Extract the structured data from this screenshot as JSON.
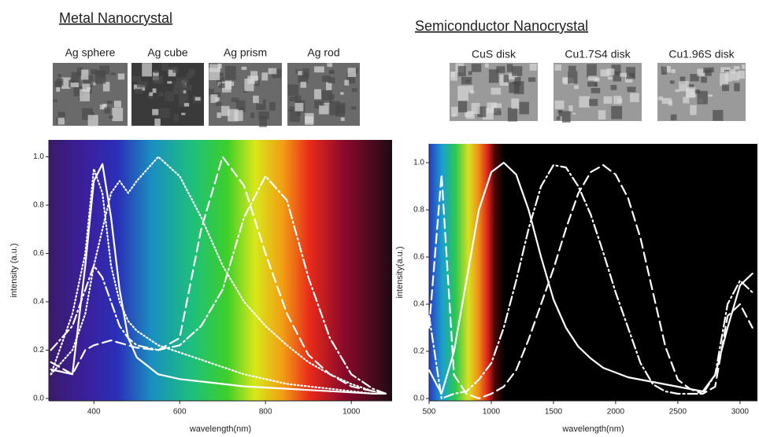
{
  "chart_data": [
    {
      "type": "line",
      "title": "Metal Nanocrystal",
      "images": [
        "Ag sphere",
        "Ag cube",
        "Ag prism",
        "Ag rod"
      ],
      "xlabel": "wavelength(nm)",
      "ylabel": "intensity (a.u.)",
      "x": [
        300,
        350,
        380,
        400,
        420,
        440,
        460,
        480,
        500,
        550,
        600,
        650,
        700,
        750,
        800,
        850,
        900,
        950,
        1000,
        1050,
        1080
      ],
      "series": [
        {
          "color": "#ffffff",
          "dash": "solid",
          "values": [
            0.12,
            0.1,
            0.55,
            0.9,
            0.97,
            0.75,
            0.45,
            0.25,
            0.17,
            0.1,
            0.08,
            0.07,
            0.06,
            0.05,
            0.045,
            0.04,
            0.035,
            0.03,
            0.025,
            0.02,
            0.02
          ]
        },
        {
          "color": "#ffffff",
          "dash": "dotted",
          "values": [
            0.1,
            0.35,
            0.6,
            0.95,
            0.85,
            0.55,
            0.4,
            0.32,
            0.28,
            0.22,
            0.19,
            0.16,
            0.13,
            0.1,
            0.08,
            0.06,
            0.05,
            0.04,
            0.03,
            0.02,
            0.02
          ]
        },
        {
          "color": "#ffffff",
          "dash": "dotted",
          "values": [
            0.1,
            0.2,
            0.35,
            0.55,
            0.7,
            0.85,
            0.9,
            0.85,
            0.9,
            1.0,
            0.92,
            0.75,
            0.55,
            0.4,
            0.3,
            0.22,
            0.15,
            0.1,
            0.06,
            0.03,
            0.02
          ]
        },
        {
          "color": "#ffffff",
          "dash": "dashed",
          "values": [
            0.15,
            0.1,
            0.2,
            0.22,
            0.23,
            0.24,
            0.23,
            0.22,
            0.21,
            0.2,
            0.25,
            0.7,
            1.0,
            0.88,
            0.6,
            0.35,
            0.18,
            0.1,
            0.05,
            0.03,
            0.02
          ]
        },
        {
          "color": "#ffffff",
          "dash": "dashdot",
          "values": [
            0.2,
            0.3,
            0.45,
            0.55,
            0.5,
            0.4,
            0.3,
            0.25,
            0.22,
            0.2,
            0.22,
            0.3,
            0.45,
            0.75,
            0.92,
            0.82,
            0.5,
            0.25,
            0.1,
            0.04,
            0.02
          ]
        }
      ],
      "xlim": [
        295,
        1095
      ],
      "ylim": [
        -0.01,
        1.07
      ],
      "xticks": [
        400,
        600,
        800,
        1000
      ],
      "yticks": [
        {
          "value": 0,
          "label": "0.0"
        },
        0.2,
        0.4,
        0.6,
        0.8,
        {
          "value": 1,
          "label": "1.0"
        }
      ]
    },
    {
      "type": "line",
      "title": "Semiconductor Nanocrystal",
      "images": [
        "CuS disk",
        "Cu1.7S4 disk",
        "Cu1.96S disk"
      ],
      "xlabel": "wavelength(nm)",
      "ylabel": "intensity(a.u.)",
      "x": [
        500,
        600,
        700,
        800,
        900,
        1000,
        1100,
        1200,
        1300,
        1400,
        1500,
        1600,
        1700,
        1800,
        1900,
        2000,
        2100,
        2200,
        2300,
        2400,
        2500,
        2600,
        2700,
        2800,
        2900,
        3000,
        3100
      ],
      "series": [
        {
          "color": "#ffffff",
          "dash": "solid",
          "values": [
            0.12,
            0.02,
            0.2,
            0.5,
            0.8,
            0.96,
            1.0,
            0.95,
            0.8,
            0.6,
            0.42,
            0.3,
            0.22,
            0.17,
            0.13,
            0.11,
            0.09,
            0.08,
            0.07,
            0.06,
            0.05,
            0.04,
            0.03,
            0.1,
            0.3,
            0.48,
            0.53
          ]
        },
        {
          "color": "#ffffff",
          "dash": "dashdot",
          "values": [
            0.35,
            0.0,
            0.02,
            0.03,
            0.08,
            0.15,
            0.3,
            0.5,
            0.72,
            0.9,
            0.99,
            0.98,
            0.9,
            0.78,
            0.62,
            0.45,
            0.3,
            0.15,
            0.06,
            0.03,
            0.02,
            0.02,
            0.02,
            0.1,
            0.4,
            0.5,
            0.45
          ]
        },
        {
          "color": "#ffffff",
          "dash": "dashed",
          "values": [
            0.3,
            0.95,
            0.1,
            0.02,
            0.0,
            0.02,
            0.05,
            0.12,
            0.25,
            0.4,
            0.55,
            0.72,
            0.87,
            0.96,
            0.99,
            0.95,
            0.85,
            0.68,
            0.45,
            0.22,
            0.08,
            0.04,
            0.02,
            0.05,
            0.35,
            0.4,
            0.3
          ]
        }
      ],
      "xlim": [
        500,
        3140
      ],
      "ylim": [
        -0.01,
        1.08
      ],
      "xticks": [
        500,
        1000,
        1500,
        2000,
        2500,
        3000
      ],
      "yticks": [
        {
          "value": 0,
          "label": "0.0"
        },
        0.2,
        0.4,
        0.6,
        0.8,
        {
          "value": 1,
          "label": "1.0"
        }
      ]
    }
  ]
}
